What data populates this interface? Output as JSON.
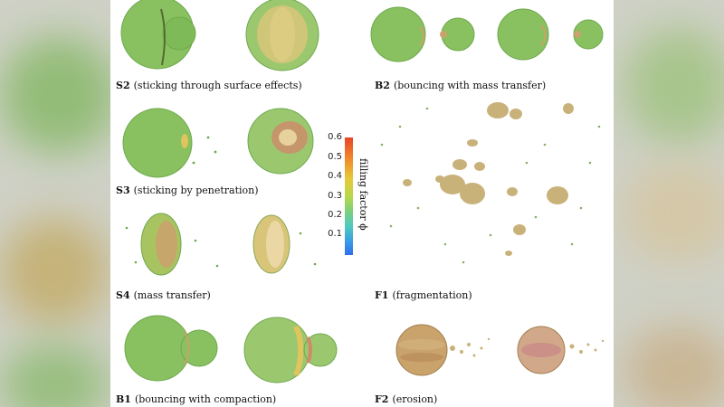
{
  "colorbar": {
    "label": "filling factor ϕ",
    "ticks": [
      "0.6",
      "0.5",
      "0.4",
      "0.3",
      "0.2",
      "0.1"
    ]
  },
  "panels": {
    "s2": {
      "id": "S2",
      "desc": "(sticking through surface effects)"
    },
    "b2": {
      "id": "B2",
      "desc": "(bouncing with mass transfer)"
    },
    "s3": {
      "id": "S3",
      "desc": "(sticking by penetration)"
    },
    "f1": {
      "id": "F1",
      "desc": "(fragmentation)"
    },
    "s4": {
      "id": "S4",
      "desc": "(mass transfer)"
    },
    "b1": {
      "id": "B1",
      "desc": "(bouncing with compaction)"
    },
    "f2": {
      "id": "F2",
      "desc": "(erosion)"
    }
  },
  "colors": {
    "green": "#8bc263",
    "green_dark": "#6ea94d",
    "yellow": "#d8c57a",
    "tan": "#c9a36b",
    "pink": "#c98a86"
  }
}
